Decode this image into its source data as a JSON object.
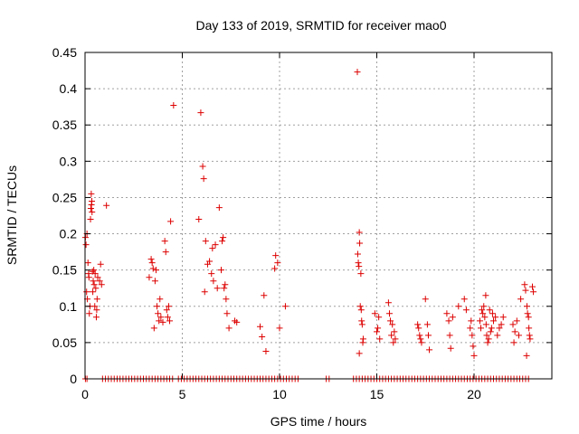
{
  "chart_data": {
    "type": "scatter",
    "title": "Day 133 of 2019, SRMTID for receiver mao0",
    "xlabel": "GPS time / hours",
    "ylabel": "SRMTID / TECUs",
    "xlim": [
      0,
      24
    ],
    "ylim": [
      0,
      0.45
    ],
    "xticks": [
      0,
      5,
      10,
      15,
      20
    ],
    "xtick_labels": [
      "0",
      "5",
      "10",
      "15",
      "20"
    ],
    "yticks": [
      0,
      0.05,
      0.1,
      0.15,
      0.2,
      0.25,
      0.3,
      0.35,
      0.4,
      0.45
    ],
    "ytick_labels": [
      "0",
      "0.05",
      "0.1",
      "0.15",
      "0.2",
      "0.25",
      "0.3",
      "0.35",
      "0.4",
      "0.45"
    ],
    "grid": true,
    "marker": "+",
    "color": "#dd0000",
    "series": [
      {
        "name": "SRMTID",
        "points": [
          [
            0.02,
            0.195
          ],
          [
            0.05,
            0.185
          ],
          [
            0.08,
            0.12
          ],
          [
            0.1,
            0.2
          ],
          [
            0.12,
            0.11
          ],
          [
            0.15,
            0.16
          ],
          [
            0.18,
            0.145
          ],
          [
            0.2,
            0.14
          ],
          [
            0.22,
            0.09
          ],
          [
            0.25,
            0.1
          ],
          [
            0.28,
            0.22
          ],
          [
            0.3,
            0.235
          ],
          [
            0.32,
            0.255
          ],
          [
            0.33,
            0.24
          ],
          [
            0.35,
            0.245
          ],
          [
            0.36,
            0.23
          ],
          [
            0.38,
            0.148
          ],
          [
            0.4,
            0.12
          ],
          [
            0.42,
            0.135
          ],
          [
            0.45,
            0.15
          ],
          [
            0.47,
            0.13
          ],
          [
            0.5,
            0.1
          ],
          [
            0.52,
            0.145
          ],
          [
            0.55,
            0.125
          ],
          [
            0.58,
            0.085
          ],
          [
            0.6,
            0.095
          ],
          [
            0.62,
            0.11
          ],
          [
            0.65,
            0.14
          ],
          [
            0.75,
            0.135
          ],
          [
            0.8,
            0.158
          ],
          [
            0.85,
            0.13
          ],
          [
            1.1,
            0.239
          ],
          [
            3.3,
            0.14
          ],
          [
            3.4,
            0.165
          ],
          [
            3.45,
            0.16
          ],
          [
            3.5,
            0.152
          ],
          [
            3.55,
            0.07
          ],
          [
            3.6,
            0.135
          ],
          [
            3.65,
            0.15
          ],
          [
            3.7,
            0.1
          ],
          [
            3.75,
            0.09
          ],
          [
            3.8,
            0.08
          ],
          [
            3.85,
            0.11
          ],
          [
            3.9,
            0.085
          ],
          [
            4.0,
            0.078
          ],
          [
            4.1,
            0.19
          ],
          [
            4.15,
            0.175
          ],
          [
            4.2,
            0.095
          ],
          [
            4.25,
            0.085
          ],
          [
            4.3,
            0.1
          ],
          [
            4.35,
            0.08
          ],
          [
            4.4,
            0.217
          ],
          [
            4.55,
            0.377
          ],
          [
            5.85,
            0.22
          ],
          [
            5.95,
            0.367
          ],
          [
            6.05,
            0.293
          ],
          [
            6.1,
            0.276
          ],
          [
            6.15,
            0.12
          ],
          [
            6.2,
            0.19
          ],
          [
            6.3,
            0.158
          ],
          [
            6.4,
            0.162
          ],
          [
            6.5,
            0.145
          ],
          [
            6.55,
            0.18
          ],
          [
            6.6,
            0.135
          ],
          [
            6.7,
            0.185
          ],
          [
            6.8,
            0.125
          ],
          [
            6.9,
            0.236
          ],
          [
            7.0,
            0.15
          ],
          [
            7.05,
            0.19
          ],
          [
            7.1,
            0.195
          ],
          [
            7.15,
            0.125
          ],
          [
            7.2,
            0.13
          ],
          [
            7.25,
            0.11
          ],
          [
            7.3,
            0.09
          ],
          [
            7.4,
            0.07
          ],
          [
            7.7,
            0.08
          ],
          [
            7.8,
            0.078
          ],
          [
            9.0,
            0.072
          ],
          [
            9.1,
            0.058
          ],
          [
            9.2,
            0.115
          ],
          [
            9.3,
            0.038
          ],
          [
            9.75,
            0.152
          ],
          [
            9.8,
            0.17
          ],
          [
            9.9,
            0.16
          ],
          [
            10.0,
            0.07
          ],
          [
            10.3,
            0.1
          ],
          [
            14.0,
            0.423
          ],
          [
            14.02,
            0.172
          ],
          [
            14.05,
            0.16
          ],
          [
            14.08,
            0.155
          ],
          [
            14.1,
            0.202
          ],
          [
            14.12,
            0.187
          ],
          [
            14.15,
            0.1
          ],
          [
            14.18,
            0.145
          ],
          [
            14.2,
            0.095
          ],
          [
            14.22,
            0.08
          ],
          [
            14.25,
            0.075
          ],
          [
            14.28,
            0.05
          ],
          [
            14.3,
            0.055
          ],
          [
            14.1,
            0.035
          ],
          [
            14.9,
            0.09
          ],
          [
            15.0,
            0.065
          ],
          [
            15.05,
            0.07
          ],
          [
            15.1,
            0.085
          ],
          [
            15.15,
            0.055
          ],
          [
            15.6,
            0.105
          ],
          [
            15.65,
            0.09
          ],
          [
            15.7,
            0.08
          ],
          [
            15.75,
            0.06
          ],
          [
            15.8,
            0.075
          ],
          [
            15.85,
            0.05
          ],
          [
            15.9,
            0.065
          ],
          [
            15.95,
            0.055
          ],
          [
            17.1,
            0.075
          ],
          [
            17.15,
            0.07
          ],
          [
            17.2,
            0.06
          ],
          [
            17.25,
            0.055
          ],
          [
            17.3,
            0.05
          ],
          [
            17.5,
            0.11
          ],
          [
            17.6,
            0.075
          ],
          [
            17.65,
            0.06
          ],
          [
            17.7,
            0.04
          ],
          [
            18.6,
            0.09
          ],
          [
            18.7,
            0.08
          ],
          [
            18.75,
            0.06
          ],
          [
            18.8,
            0.042
          ],
          [
            18.9,
            0.085
          ],
          [
            19.2,
            0.1
          ],
          [
            19.5,
            0.11
          ],
          [
            19.6,
            0.095
          ],
          [
            19.8,
            0.07
          ],
          [
            19.85,
            0.08
          ],
          [
            19.9,
            0.06
          ],
          [
            19.95,
            0.045
          ],
          [
            20.0,
            0.032
          ],
          [
            20.3,
            0.08
          ],
          [
            20.35,
            0.07
          ],
          [
            20.4,
            0.095
          ],
          [
            20.45,
            0.09
          ],
          [
            20.5,
            0.1
          ],
          [
            20.55,
            0.085
          ],
          [
            20.6,
            0.115
          ],
          [
            20.62,
            0.075
          ],
          [
            20.65,
            0.06
          ],
          [
            20.7,
            0.05
          ],
          [
            20.75,
            0.055
          ],
          [
            20.8,
            0.095
          ],
          [
            20.85,
            0.065
          ],
          [
            20.9,
            0.07
          ],
          [
            20.95,
            0.09
          ],
          [
            21.0,
            0.08
          ],
          [
            21.1,
            0.085
          ],
          [
            21.2,
            0.06
          ],
          [
            21.3,
            0.07
          ],
          [
            21.4,
            0.075
          ],
          [
            21.5,
            0.085
          ],
          [
            22.0,
            0.075
          ],
          [
            22.05,
            0.05
          ],
          [
            22.1,
            0.065
          ],
          [
            22.2,
            0.08
          ],
          [
            22.3,
            0.06
          ],
          [
            22.4,
            0.11
          ],
          [
            22.6,
            0.13
          ],
          [
            22.65,
            0.122
          ],
          [
            22.7,
            0.032
          ],
          [
            22.72,
            0.1
          ],
          [
            22.75,
            0.09
          ],
          [
            22.8,
            0.085
          ],
          [
            22.82,
            0.07
          ],
          [
            22.85,
            0.06
          ],
          [
            22.88,
            0.055
          ],
          [
            23.0,
            0.127
          ],
          [
            23.05,
            0.12
          ]
        ],
        "zero_runs": [
          [
            0.9,
            4.6
          ],
          [
            4.8,
            11.0
          ],
          [
            12.4,
            12.6
          ],
          [
            13.8,
            22.8
          ]
        ]
      }
    ]
  }
}
